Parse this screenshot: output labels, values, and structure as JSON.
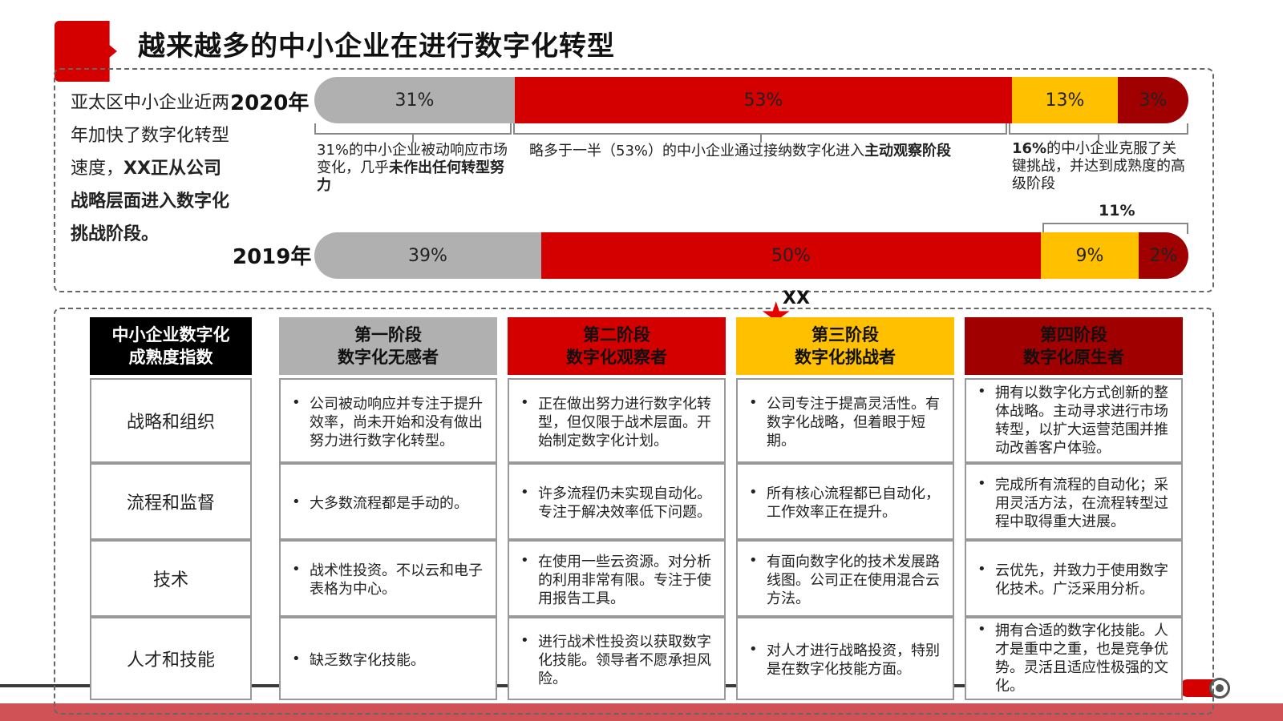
{
  "title": "越来越多的中小企业在进行数字化转型",
  "side": {
    "plain": "亚太区中小企业近两年加快了数字化转型速度，",
    "bold": "XX正从公司战略层面进入数字化挑战阶段。"
  },
  "years": {
    "y2020": "2020年",
    "y2019": "2019年"
  },
  "bar2020": [
    "31%",
    "53%",
    "13%",
    "3%"
  ],
  "bar2019": [
    "39%",
    "50%",
    "9%",
    "2%"
  ],
  "colors": {
    "gray": "#b0b0b0",
    "red": "#d40000",
    "yellow": "#ffc000",
    "darkred": "#a00000",
    "black": "#000000"
  },
  "notes": {
    "n1_plain": "31%的中小企业被动响应市场变化，几乎",
    "n1_bold": "未作出任何转型努力",
    "n2_plain": "略多于一半（53%）的中小企业通过接纳数字化进入",
    "n2_bold": "主动观察阶段",
    "n3_bold": "16%",
    "n3_plain": "的中小企业克服了关键挑战，并达到成熟度的高级阶段",
    "n11": "11%"
  },
  "marker": "XX",
  "headers": {
    "index": [
      "中小企业数字化",
      "成熟度指数"
    ],
    "stage1": [
      "第一阶段",
      "数字化无感者"
    ],
    "stage2": [
      "第二阶段",
      "数字化观察者"
    ],
    "stage3": [
      "第三阶段",
      "数字化挑战者"
    ],
    "stage4": [
      "第四阶段",
      "数字化原生者"
    ]
  },
  "rows": [
    {
      "label": "战略和组织",
      "cells": [
        "公司被动响应并专注于提升效率，尚未开始和没有做出努力进行数字化转型。",
        "正在做出努力进行数字化转型，但仅限于战术层面。开始制定数字化计划。",
        "公司专注于提高灵活性。有数字化战略，但着眼于短期。",
        "拥有以数字化方式创新的整体战略。主动寻求进行市场转型，以扩大运营范围并推动改善客户体验。"
      ]
    },
    {
      "label": "流程和监督",
      "cells": [
        "大多数流程都是手动的。",
        "许多流程仍未实现自动化。专注于解决效率低下问题。",
        "所有核心流程都已自动化，工作效率正在提升。",
        "完成所有流程的自动化；采用灵活方法，在流程转型过程中取得重大进展。"
      ]
    },
    {
      "label": "技术",
      "cells": [
        "战术性投资。不以云和电子表格为中心。",
        "在使用一些云资源。对分析的利用非常有限。专注于使用报告工具。",
        "有面向数字化的技术发展路线图。公司正在使用混合云方法。",
        "云优先，并致力于使用数字化技术。广泛采用分析。"
      ]
    },
    {
      "label": "人才和技能",
      "cells": [
        "缺乏数字化技能。",
        "进行战术性投资以获取数字化技能。领导者不愿承担风险。",
        "对人才进行战略投资，特别是在数字化技能方面。",
        "拥有合适的数字化技能。人才是重中之重，也是竞争优势。灵活且适应性极强的文化。"
      ]
    }
  ]
}
